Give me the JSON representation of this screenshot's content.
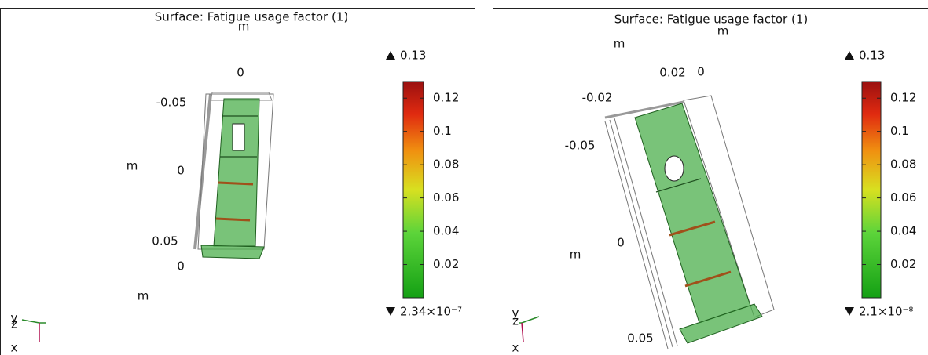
{
  "panels": [
    {
      "title": "Surface: Fatigue usage factor (1)",
      "scene_labels": [
        "m",
        "0",
        "-0.05",
        "m",
        "0",
        "0.05",
        "0",
        "m"
      ],
      "triad": [
        "y",
        "z",
        "x"
      ],
      "colorbar": {
        "max": 0.13,
        "min": {
          "value": 2.34e-07,
          "label": "2.34×10⁻⁷"
        },
        "ticks": [
          0.02,
          0.04,
          0.06,
          0.08,
          0.1,
          0.12
        ]
      }
    },
    {
      "title": "Surface: Fatigue usage factor (1)",
      "scene_labels": [
        "m",
        "m",
        "0.02",
        "0",
        "-0.02",
        "-0.05",
        "0",
        "m",
        "0.05"
      ],
      "triad": [
        "z",
        "y",
        "x"
      ],
      "colorbar": {
        "max": 0.13,
        "min": {
          "value": 2.1e-08,
          "label": "2.1×10⁻⁸"
        },
        "ticks": [
          0.02,
          0.04,
          0.06,
          0.08,
          0.1,
          0.12
        ]
      }
    }
  ]
}
